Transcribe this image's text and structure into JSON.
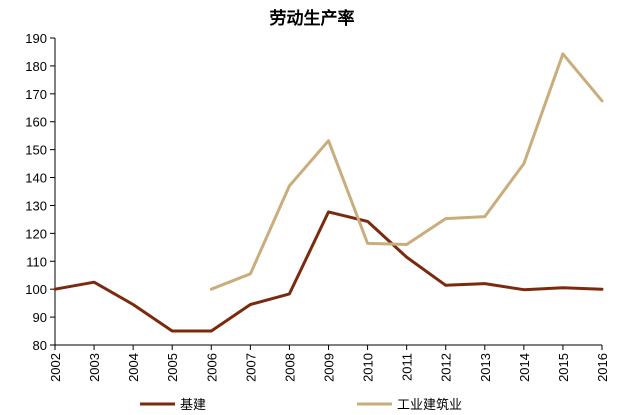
{
  "chart_data": {
    "type": "line",
    "title": "劳动生产率",
    "xlabel": "",
    "ylabel": "",
    "x": [
      "2002",
      "2003",
      "2004",
      "2005",
      "2006",
      "2007",
      "2008",
      "2009",
      "2010",
      "2011",
      "2012",
      "2013",
      "2014",
      "2015",
      "2016"
    ],
    "ylim": [
      80,
      190
    ],
    "yticks": [
      80,
      90,
      100,
      110,
      120,
      130,
      140,
      150,
      160,
      170,
      180,
      190
    ],
    "grid": false,
    "legend_position": "bottom",
    "series": [
      {
        "name": "基建",
        "color": "#7b2a0e",
        "values": [
          100,
          102.5,
          94.5,
          85,
          85,
          94.5,
          98.3,
          127.7,
          124.3,
          111.5,
          101.4,
          102,
          99.8,
          100.5,
          100
        ]
      },
      {
        "name": "工业建筑业",
        "color": "#c9ad7c",
        "values": [
          null,
          null,
          null,
          null,
          100,
          105.5,
          137,
          153.2,
          116.4,
          116,
          125.3,
          126,
          145,
          184.3,
          167.5
        ]
      }
    ]
  }
}
